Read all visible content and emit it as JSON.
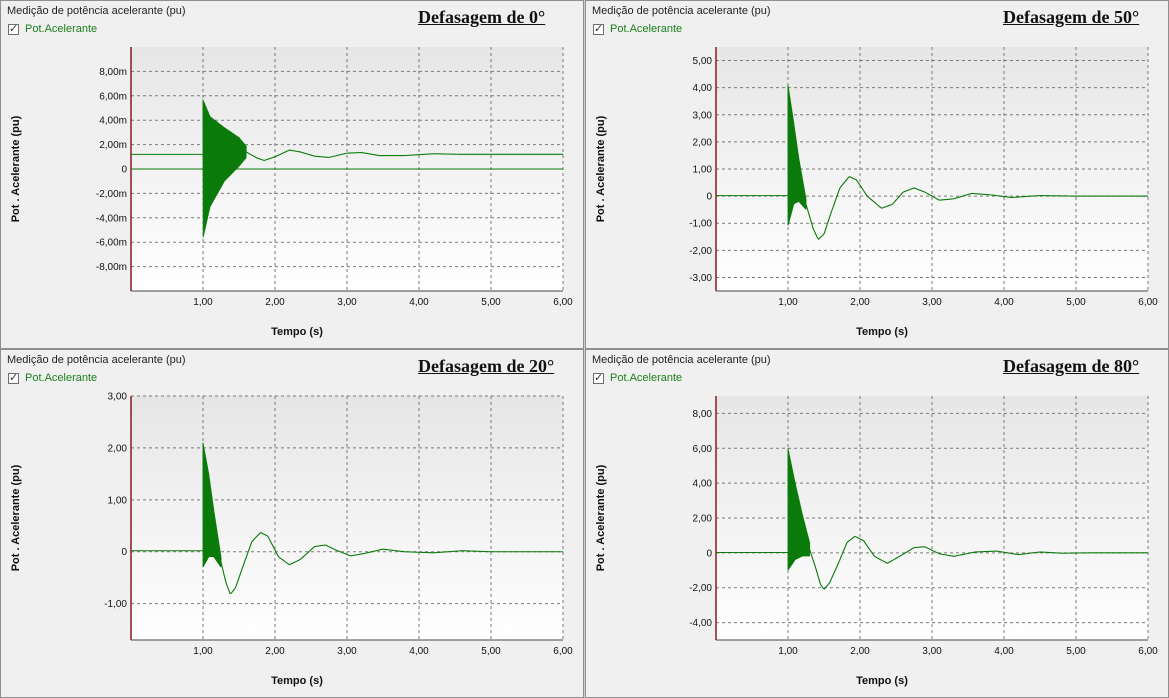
{
  "panels": [
    {
      "header": "Medição de potência acelerante (pu)",
      "legend_label": "Pot.Acelerante",
      "title": "Defasagem de 0°"
    },
    {
      "header": "Medição de potência acelerante (pu)",
      "legend_label": "Pot.Acelerante",
      "title": "Defasagem de 50°"
    },
    {
      "header": "Medição de potência acelerante (pu)",
      "legend_label": "Pot.Acelerante",
      "title": "Defasagem de 20°"
    },
    {
      "header": "Medição de potência acelerante (pu)",
      "legend_label": "Pot.Acelerante",
      "title": "Defasagem de 80°"
    }
  ],
  "colors": {
    "series": "#0a7a0a",
    "left_axis": "#8b1a1a",
    "grid": "#7a7a7a",
    "plot_bg_top": "#e6e6e6",
    "plot_bg_bottom": "#ffffff"
  },
  "chart_data": [
    {
      "type": "line",
      "title": "Defasagem de 0°",
      "xlabel": "Tempo (s)",
      "ylabel": "Pot . Acelerante (pu)",
      "xlim": [
        0,
        6
      ],
      "ylim": [
        -10,
        10
      ],
      "x_ticks": [
        1,
        2,
        3,
        4,
        5,
        6
      ],
      "x_tick_labels": [
        "1,00",
        "2,00",
        "3,00",
        "4,00",
        "5,00",
        "6,00"
      ],
      "y_ticks": [
        -8,
        -6,
        -4,
        -2,
        0,
        2,
        4,
        6,
        8
      ],
      "y_tick_labels": [
        "-8,00m",
        "-6,00m",
        "-4,00m",
        "-2,00m",
        "0",
        "2,00m",
        "4,00m",
        "6,00m",
        "8,00m"
      ],
      "grid": true,
      "series": [
        {
          "name": "Pot.Acelerante",
          "baseline": 1.2,
          "pre_fault": 1.2,
          "event_time": 1.0,
          "initial_band_top": 5.5,
          "initial_band_bottom": -6.0,
          "band_end": 1.6,
          "band_center_points": [
            [
              1.0,
              0.0
            ],
            [
              1.1,
              0.6
            ],
            [
              1.3,
              1.2
            ],
            [
              1.5,
              1.4
            ],
            [
              1.6,
              1.4
            ]
          ],
          "band_half_width_points": [
            [
              1.0,
              5.7
            ],
            [
              1.1,
              3.7
            ],
            [
              1.3,
              2.2
            ],
            [
              1.5,
              1.2
            ],
            [
              1.6,
              0.5
            ]
          ],
          "tail_points": [
            [
              1.6,
              1.4
            ],
            [
              1.75,
              0.9
            ],
            [
              1.85,
              0.7
            ],
            [
              2.0,
              1.0
            ],
            [
              2.2,
              1.55
            ],
            [
              2.35,
              1.4
            ],
            [
              2.55,
              1.05
            ],
            [
              2.75,
              0.95
            ],
            [
              3.0,
              1.3
            ],
            [
              3.2,
              1.35
            ],
            [
              3.45,
              1.1
            ],
            [
              3.8,
              1.1
            ],
            [
              4.2,
              1.25
            ],
            [
              4.6,
              1.2
            ],
            [
              5.0,
              1.2
            ],
            [
              6.0,
              1.2
            ]
          ]
        }
      ]
    },
    {
      "type": "line",
      "title": "Defasagem de 50°",
      "xlabel": "Tempo (s)",
      "ylabel": "Pot . Acelerante (pu)",
      "xlim": [
        0,
        6
      ],
      "ylim": [
        -3.5,
        5.5
      ],
      "x_ticks": [
        1,
        2,
        3,
        4,
        5,
        6
      ],
      "x_tick_labels": [
        "1,00",
        "2,00",
        "3,00",
        "4,00",
        "5,00",
        "6,00"
      ],
      "y_ticks": [
        -3,
        -2,
        -1,
        0,
        1,
        2,
        3,
        4,
        5
      ],
      "y_tick_labels": [
        "-3,00",
        "-2,00",
        "-1,00",
        "0",
        "1,00",
        "2,00",
        "3,00",
        "4,00",
        "5,00"
      ],
      "grid": true,
      "series": [
        {
          "name": "Pot.Acelerante",
          "baseline": 0,
          "pre_fault": 0.02,
          "event_time": 1.0,
          "band_end": 1.25,
          "band_center_points": [
            [
              1.0,
              1.5
            ],
            [
              1.08,
              1.2
            ],
            [
              1.15,
              0.6
            ],
            [
              1.25,
              -0.3
            ]
          ],
          "band_half_width_points": [
            [
              1.0,
              2.6
            ],
            [
              1.08,
              1.5
            ],
            [
              1.15,
              0.8
            ],
            [
              1.25,
              0.2
            ]
          ],
          "tail_points": [
            [
              1.25,
              -0.3
            ],
            [
              1.35,
              -1.2
            ],
            [
              1.42,
              -1.6
            ],
            [
              1.5,
              -1.4
            ],
            [
              1.6,
              -0.6
            ],
            [
              1.72,
              0.3
            ],
            [
              1.85,
              0.72
            ],
            [
              1.95,
              0.6
            ],
            [
              2.1,
              0.0
            ],
            [
              2.3,
              -0.45
            ],
            [
              2.45,
              -0.3
            ],
            [
              2.6,
              0.15
            ],
            [
              2.75,
              0.3
            ],
            [
              2.9,
              0.15
            ],
            [
              3.1,
              -0.15
            ],
            [
              3.3,
              -0.1
            ],
            [
              3.55,
              0.1
            ],
            [
              3.8,
              0.05
            ],
            [
              4.1,
              -0.05
            ],
            [
              4.5,
              0.02
            ],
            [
              5.0,
              0.0
            ],
            [
              6.0,
              0.0
            ]
          ]
        }
      ]
    },
    {
      "type": "line",
      "title": "Defasagem de 20°",
      "xlabel": "Tempo (s)",
      "ylabel": "Pot . Acelerante (pu)",
      "xlim": [
        0,
        6
      ],
      "ylim": [
        -1.7,
        3
      ],
      "x_ticks": [
        1,
        2,
        3,
        4,
        5,
        6
      ],
      "x_tick_labels": [
        "1,00",
        "2,00",
        "3,00",
        "4,00",
        "5,00",
        "6,00"
      ],
      "y_ticks": [
        -1,
        0,
        1,
        2,
        3
      ],
      "y_tick_labels": [
        "-1,00",
        "0",
        "1,00",
        "2,00",
        "3,00"
      ],
      "grid": true,
      "series": [
        {
          "name": "Pot.Acelerante",
          "baseline": 0,
          "pre_fault": 0.02,
          "event_time": 1.0,
          "band_end": 1.25,
          "band_center_points": [
            [
              1.0,
              0.9
            ],
            [
              1.08,
              0.7
            ],
            [
              1.15,
              0.35
            ],
            [
              1.25,
              -0.2
            ]
          ],
          "band_half_width_points": [
            [
              1.0,
              1.2
            ],
            [
              1.08,
              0.8
            ],
            [
              1.15,
              0.45
            ],
            [
              1.25,
              0.1
            ]
          ],
          "tail_points": [
            [
              1.25,
              -0.2
            ],
            [
              1.32,
              -0.6
            ],
            [
              1.38,
              -0.82
            ],
            [
              1.45,
              -0.7
            ],
            [
              1.55,
              -0.3
            ],
            [
              1.68,
              0.2
            ],
            [
              1.8,
              0.37
            ],
            [
              1.9,
              0.3
            ],
            [
              2.05,
              -0.1
            ],
            [
              2.2,
              -0.25
            ],
            [
              2.35,
              -0.15
            ],
            [
              2.55,
              0.1
            ],
            [
              2.7,
              0.13
            ],
            [
              2.85,
              0.03
            ],
            [
              3.05,
              -0.08
            ],
            [
              3.25,
              -0.03
            ],
            [
              3.5,
              0.05
            ],
            [
              3.8,
              0.0
            ],
            [
              4.2,
              -0.02
            ],
            [
              4.6,
              0.02
            ],
            [
              5.0,
              0.0
            ],
            [
              6.0,
              0.0
            ]
          ]
        }
      ]
    },
    {
      "type": "line",
      "title": "Defasagem de 80°",
      "xlabel": "Tempo (s)",
      "ylabel": "Pot . Acelerante (pu)",
      "xlim": [
        0,
        6
      ],
      "ylim": [
        -5,
        9
      ],
      "x_ticks": [
        1,
        2,
        3,
        4,
        5,
        6
      ],
      "x_tick_labels": [
        "1,00",
        "2,00",
        "3,00",
        "4,00",
        "5,00",
        "6,00"
      ],
      "y_ticks": [
        -4,
        -2,
        0,
        2,
        4,
        6,
        8
      ],
      "y_tick_labels": [
        "-4,00",
        "-2,00",
        "0",
        "2,00",
        "4,00",
        "6,00",
        "8,00"
      ],
      "grid": true,
      "series": [
        {
          "name": "Pot.Acelerante",
          "baseline": 0,
          "pre_fault": 0.02,
          "event_time": 1.0,
          "band_end": 1.3,
          "band_center_points": [
            [
              1.0,
              2.5
            ],
            [
              1.1,
              1.8
            ],
            [
              1.2,
              1.0
            ],
            [
              1.3,
              0.2
            ]
          ],
          "band_half_width_points": [
            [
              1.0,
              3.5
            ],
            [
              1.1,
              2.2
            ],
            [
              1.2,
              1.2
            ],
            [
              1.3,
              0.4
            ]
          ],
          "tail_points": [
            [
              1.3,
              0.2
            ],
            [
              1.38,
              -0.8
            ],
            [
              1.45,
              -1.8
            ],
            [
              1.5,
              -2.1
            ],
            [
              1.58,
              -1.7
            ],
            [
              1.7,
              -0.6
            ],
            [
              1.82,
              0.6
            ],
            [
              1.93,
              0.95
            ],
            [
              2.05,
              0.7
            ],
            [
              2.2,
              -0.2
            ],
            [
              2.38,
              -0.6
            ],
            [
              2.55,
              -0.2
            ],
            [
              2.75,
              0.3
            ],
            [
              2.9,
              0.35
            ],
            [
              3.1,
              -0.05
            ],
            [
              3.3,
              -0.2
            ],
            [
              3.6,
              0.05
            ],
            [
              3.9,
              0.1
            ],
            [
              4.2,
              -0.1
            ],
            [
              4.5,
              0.05
            ],
            [
              4.8,
              -0.02
            ],
            [
              5.2,
              0.0
            ],
            [
              6.0,
              0.0
            ]
          ]
        }
      ]
    }
  ]
}
